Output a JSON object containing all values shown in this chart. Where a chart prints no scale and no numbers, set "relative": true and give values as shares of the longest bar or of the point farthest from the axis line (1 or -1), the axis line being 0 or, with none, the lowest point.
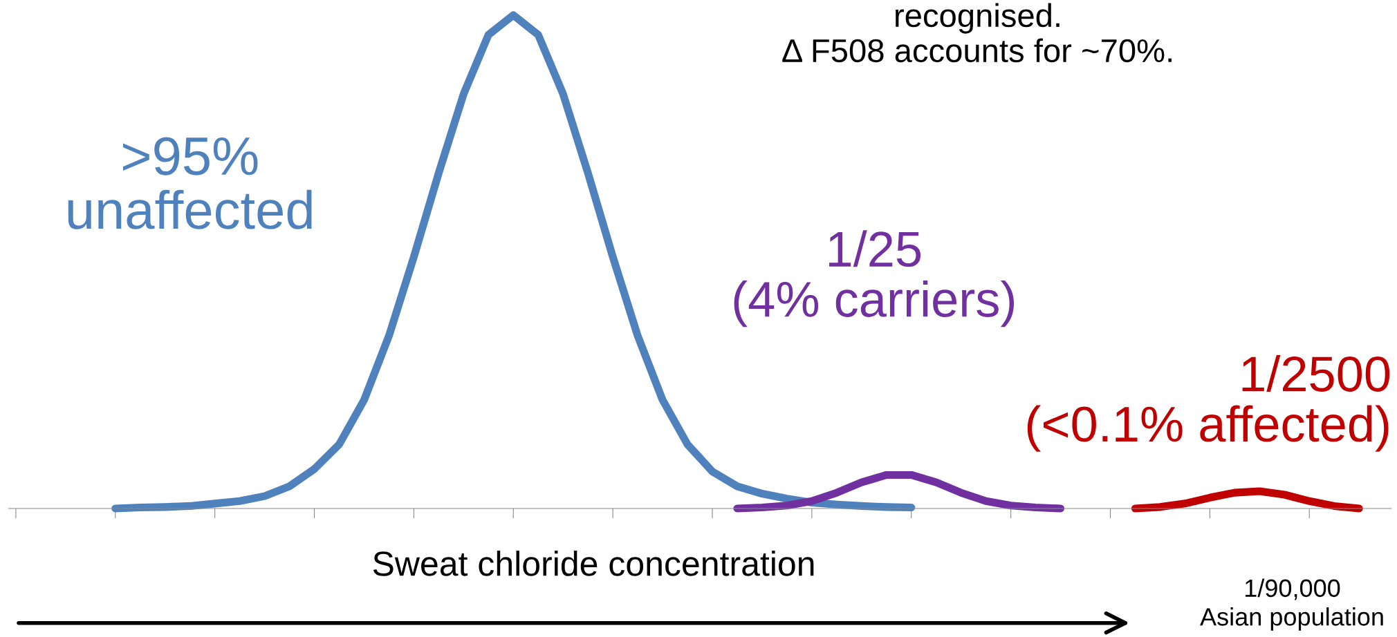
{
  "chart_data": {
    "type": "line",
    "relative": true,
    "legend": false,
    "grid": false,
    "tick_labels": false,
    "marker": "none",
    "line_style": "solid",
    "xlabel": "Sweat chloride concentration",
    "annotations": [
      "recognised.\nΔ F508 accounts for ~70%.",
      "1/90,000\nAsian population"
    ],
    "categories": [
      null,
      null,
      null,
      null,
      null,
      null,
      null,
      null,
      null,
      null,
      null,
      null,
      null,
      null,
      null,
      null,
      null,
      null,
      null,
      null,
      null,
      null,
      null,
      null,
      null,
      null,
      null,
      null,
      null,
      null,
      null,
      null,
      null,
      null,
      null,
      null,
      null,
      null,
      null,
      null,
      null,
      null,
      null,
      null,
      null,
      null,
      null,
      null,
      null,
      null,
      null,
      null,
      null,
      null,
      null,
      null
    ],
    "series": [
      {
        "name": ">95%\nunaffected",
        "color": "#4f81bd",
        "values": [
          null,
          null,
          null,
          null,
          0,
          0.002,
          0.003,
          0.005,
          0.01,
          0.015,
          0.025,
          0.045,
          0.08,
          0.13,
          0.22,
          0.35,
          0.51,
          0.68,
          0.84,
          0.96,
          1,
          0.96,
          0.84,
          0.68,
          0.51,
          0.35,
          0.22,
          0.13,
          0.075,
          0.045,
          0.03,
          0.02,
          0.012,
          0.008,
          0.005,
          0.003,
          0.002,
          null,
          null,
          null,
          null,
          null,
          null,
          null,
          null,
          null,
          null,
          null,
          null,
          null,
          null,
          null,
          null,
          null,
          null,
          null
        ]
      },
      {
        "name": "1/25\n(4% carriers)",
        "color": "#7030a0",
        "values": [
          null,
          null,
          null,
          null,
          null,
          null,
          null,
          null,
          null,
          null,
          null,
          null,
          null,
          null,
          null,
          null,
          null,
          null,
          null,
          null,
          null,
          null,
          null,
          null,
          null,
          null,
          null,
          null,
          null,
          0,
          0.002,
          0.006,
          0.015,
          0.032,
          0.053,
          0.068,
          0.068,
          0.053,
          0.032,
          0.015,
          0.006,
          0.002,
          0,
          null,
          null,
          null,
          null,
          null,
          null,
          null,
          null,
          null,
          null,
          null,
          null,
          null
        ]
      },
      {
        "name": "1/2500\n(<0.1% affected)",
        "color": "#c00000",
        "values": [
          null,
          null,
          null,
          null,
          null,
          null,
          null,
          null,
          null,
          null,
          null,
          null,
          null,
          null,
          null,
          null,
          null,
          null,
          null,
          null,
          null,
          null,
          null,
          null,
          null,
          null,
          null,
          null,
          null,
          null,
          null,
          null,
          null,
          null,
          null,
          null,
          null,
          null,
          null,
          null,
          null,
          null,
          null,
          null,
          null,
          0,
          0.003,
          0.01,
          0.022,
          0.032,
          0.035,
          0.028,
          0.015,
          0.005,
          0,
          null
        ]
      }
    ]
  }
}
